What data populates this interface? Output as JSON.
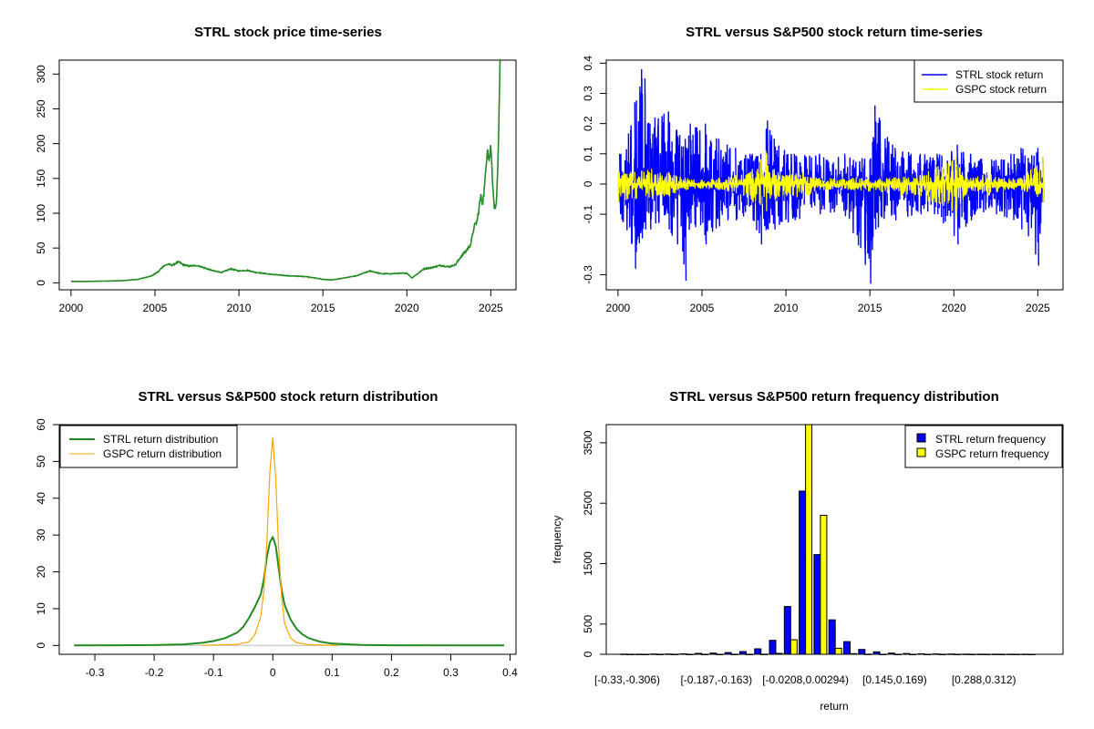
{
  "colors": {
    "green": "#228B22",
    "blue": "#0000FF",
    "yellow": "#FFFF00",
    "orange": "#FFA500",
    "gray": "#BEBEBE",
    "black": "#000000"
  },
  "chart_data": [
    {
      "type": "line",
      "title": "STRL stock price time-series",
      "xlabel": "",
      "ylabel": "",
      "xlim": [
        1999.3,
        2026.5
      ],
      "ylim": [
        -10,
        320
      ],
      "xticks": [
        2000,
        2005,
        2010,
        2015,
        2020,
        2025
      ],
      "yticks": [
        0,
        50,
        100,
        150,
        200,
        250,
        300
      ],
      "series": [
        {
          "color": "#228B22",
          "x": [
            2000.0,
            2001.0,
            2002.0,
            2003.0,
            2004.0,
            2004.8,
            2005.2,
            2005.5,
            2005.8,
            2006.0,
            2006.4,
            2006.7,
            2007.0,
            2007.5,
            2008.0,
            2008.5,
            2009.0,
            2009.5,
            2010.0,
            2010.5,
            2011.0,
            2012.0,
            2013.0,
            2014.0,
            2015.0,
            2015.5,
            2016.0,
            2017.0,
            2017.8,
            2018.5,
            2019.0,
            2020.0,
            2020.3,
            2020.8,
            2021.0,
            2021.5,
            2022.0,
            2022.5,
            2022.9,
            2023.2,
            2023.5,
            2023.8,
            2024.0,
            2024.2,
            2024.4,
            2024.5,
            2024.6,
            2024.7,
            2024.8,
            2024.9,
            2025.0,
            2025.1,
            2025.2,
            2025.3,
            2025.4,
            2025.5,
            2025.55
          ],
          "values": [
            2,
            2,
            2.5,
            3,
            5,
            10,
            16,
            24,
            27,
            25,
            30,
            26,
            24,
            25,
            21,
            17,
            15,
            20,
            17,
            18,
            15,
            12,
            10,
            9,
            5,
            4,
            6,
            10,
            17,
            13,
            13,
            14,
            7,
            16,
            20,
            22,
            25,
            23,
            26,
            37,
            45,
            55,
            80,
            90,
            125,
            115,
            130,
            160,
            200,
            175,
            198,
            150,
            110,
            108,
            150,
            250,
            310
          ]
        }
      ]
    },
    {
      "type": "line",
      "title": "STRL versus S&P500 stock return time-series",
      "xlabel": "",
      "ylabel": "",
      "xlim": [
        1999.3,
        2026.5
      ],
      "ylim": [
        -0.35,
        0.41
      ],
      "xticks": [
        2000,
        2005,
        2010,
        2015,
        2020,
        2025
      ],
      "yticks": [
        -0.3,
        -0.1,
        0.0,
        0.1,
        0.2,
        0.3,
        0.4
      ],
      "legend": {
        "position": "top-right",
        "entries": [
          "STRL stock return",
          "GSPC stock return"
        ]
      },
      "series": [
        {
          "name": "STRL stock return",
          "color": "#0000FF",
          "x": [
            2000.1,
            2001.0,
            2001.4,
            2001.6,
            2001.9,
            2002.2,
            2003.0,
            2003.5,
            2004.0,
            2004.3,
            2005.2,
            2006.0,
            2006.5,
            2007.0,
            2008.0,
            2008.5,
            2008.9,
            2009.3,
            2010.5,
            2012.0,
            2013.5,
            2015.0,
            2015.3,
            2016.5,
            2018.0,
            2019.0,
            2020.2,
            2021.0,
            2022.5,
            2024.0,
            2025.0,
            2025.3
          ],
          "high": [
            0.1,
            0.27,
            0.38,
            0.35,
            0.2,
            0.22,
            0.24,
            0.18,
            0.15,
            0.2,
            0.2,
            0.15,
            0.13,
            0.12,
            0.1,
            0.1,
            0.21,
            0.15,
            0.1,
            0.1,
            0.1,
            0.08,
            0.26,
            0.12,
            0.1,
            0.1,
            0.13,
            0.1,
            0.08,
            0.12,
            0.12,
            0.09
          ],
          "low": [
            -0.1,
            -0.28,
            -0.18,
            -0.15,
            -0.15,
            -0.13,
            -0.15,
            -0.2,
            -0.32,
            -0.13,
            -0.2,
            -0.14,
            -0.12,
            -0.12,
            -0.12,
            -0.2,
            -0.15,
            -0.15,
            -0.12,
            -0.1,
            -0.1,
            -0.33,
            -0.15,
            -0.12,
            -0.1,
            -0.1,
            -0.2,
            -0.12,
            -0.1,
            -0.15,
            -0.27,
            -0.06
          ]
        },
        {
          "name": "GSPC stock return",
          "color": "#FFFF00",
          "x": [
            2000.0,
            2001.0,
            2002.0,
            2003.0,
            2004.0,
            2005.0,
            2006.0,
            2007.0,
            2008.0,
            2008.8,
            2009.3,
            2010.0,
            2011.0,
            2012.0,
            2014.0,
            2016.0,
            2018.0,
            2020.1,
            2020.5,
            2021.0,
            2022.0,
            2023.0,
            2024.0,
            2025.3
          ],
          "high": [
            0.04,
            0.04,
            0.05,
            0.04,
            0.02,
            0.015,
            0.02,
            0.03,
            0.05,
            0.11,
            0.05,
            0.03,
            0.04,
            0.02,
            0.02,
            0.02,
            0.03,
            0.09,
            0.04,
            0.02,
            0.04,
            0.02,
            0.02,
            0.09
          ],
          "low": [
            -0.06,
            -0.05,
            -0.05,
            -0.04,
            -0.02,
            -0.015,
            -0.02,
            -0.03,
            -0.06,
            -0.09,
            -0.05,
            -0.04,
            -0.05,
            -0.02,
            -0.02,
            -0.03,
            -0.04,
            -0.12,
            -0.05,
            -0.02,
            -0.04,
            -0.02,
            -0.02,
            -0.06
          ]
        }
      ]
    },
    {
      "type": "line",
      "title": "STRL versus S&P500 stock return distribution",
      "xlabel": "",
      "ylabel": "",
      "xlim": [
        -0.36,
        0.41
      ],
      "ylim": [
        -2.4,
        60
      ],
      "xticks": [
        -0.3,
        -0.2,
        -0.1,
        0.0,
        0.1,
        0.2,
        0.3,
        0.4
      ],
      "yticks": [
        0,
        10,
        20,
        30,
        40,
        50,
        60
      ],
      "legend": {
        "position": "top-left",
        "entries": [
          "STRL return distribution",
          "GSPC return distribution"
        ]
      },
      "series": [
        {
          "name": "STRL return distribution",
          "color": "#228B22",
          "x": [
            -0.335,
            -0.2,
            -0.15,
            -0.12,
            -0.1,
            -0.08,
            -0.06,
            -0.05,
            -0.04,
            -0.03,
            -0.02,
            -0.015,
            -0.01,
            -0.005,
            0.0,
            0.005,
            0.01,
            0.015,
            0.02,
            0.03,
            0.04,
            0.05,
            0.06,
            0.08,
            0.1,
            0.15,
            0.2,
            0.39
          ],
          "values": [
            0,
            0.1,
            0.3,
            0.7,
            1.2,
            2.0,
            3.5,
            5.0,
            7.5,
            10.5,
            14.0,
            18.0,
            24.0,
            28.0,
            29.5,
            27.0,
            21.0,
            15.0,
            11.0,
            7.0,
            4.5,
            3.0,
            2.0,
            1.0,
            0.5,
            0.15,
            0.05,
            0
          ]
        },
        {
          "name": "GSPC return distribution",
          "color": "#FFA500",
          "x": [
            -0.12,
            -0.06,
            -0.04,
            -0.03,
            -0.02,
            -0.015,
            -0.01,
            -0.005,
            0.0,
            0.005,
            0.01,
            0.015,
            0.02,
            0.03,
            0.04,
            0.06,
            0.11
          ],
          "values": [
            0,
            0.3,
            1.0,
            3.0,
            8.0,
            15.0,
            28.0,
            47.0,
            56.5,
            45.0,
            26.0,
            13.0,
            6.0,
            2.0,
            0.8,
            0.2,
            0
          ]
        }
      ]
    },
    {
      "type": "bar",
      "title": "STRL versus S&P500 return frequency distribution",
      "xlabel": "return",
      "ylabel": "frequency",
      "ylim": [
        0,
        3800
      ],
      "yticks": [
        0,
        500,
        1500,
        2500,
        3500
      ],
      "categories": [
        "[-0.33,-0.306)",
        "",
        "",
        "",
        "",
        "",
        "[-0.187,-0.163)",
        "",
        "",
        "",
        "",
        "",
        "[-0.0208,0.00294)",
        "",
        "",
        "",
        "",
        "",
        "[0.145,0.169)",
        "",
        "",
        "",
        "",
        "",
        "[0.288,0.312)",
        "",
        "",
        ""
      ],
      "legend": {
        "position": "top-right",
        "entries": [
          "STRL return frequency",
          "GSPC return frequency"
        ]
      },
      "series": [
        {
          "name": "STRL return frequency",
          "color": "#0000FF",
          "values": [
            3,
            2,
            4,
            5,
            8,
            15,
            20,
            28,
            45,
            90,
            230,
            790,
            2700,
            1650,
            570,
            210,
            80,
            40,
            20,
            12,
            8,
            6,
            4,
            3,
            2,
            2,
            1,
            2
          ]
        },
        {
          "name": "GSPC return frequency",
          "color": "#FFFF00",
          "values": [
            0,
            0,
            0,
            0,
            0,
            0,
            0,
            0,
            0,
            2,
            15,
            240,
            3800,
            2300,
            100,
            10,
            1,
            0,
            0,
            0,
            0,
            0,
            0,
            0,
            0,
            0,
            0,
            0
          ]
        }
      ]
    }
  ]
}
